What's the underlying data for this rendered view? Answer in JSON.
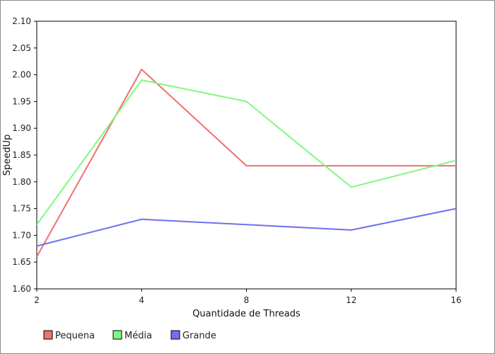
{
  "chart_data": {
    "type": "line",
    "title": "",
    "xlabel": "Quantidade de Threads",
    "ylabel": "SpeedUp",
    "x": [
      "2",
      "4",
      "8",
      "12",
      "16"
    ],
    "ylim": [
      1.6,
      2.1
    ],
    "yticks": [
      "1.60",
      "1.65",
      "1.70",
      "1.75",
      "1.80",
      "1.85",
      "1.90",
      "1.95",
      "2.00",
      "2.05",
      "2.10"
    ],
    "grid": false,
    "legend_position": "bottom-left",
    "series": [
      {
        "name": "Pequena",
        "color": "#f07070",
        "values": [
          1.66,
          2.01,
          1.83,
          1.83,
          1.83
        ]
      },
      {
        "name": "Média",
        "color": "#80f880",
        "values": [
          1.72,
          1.99,
          1.95,
          1.79,
          1.84
        ]
      },
      {
        "name": "Grande",
        "color": "#7070f0",
        "values": [
          1.68,
          1.73,
          1.72,
          1.71,
          1.75
        ]
      }
    ]
  }
}
